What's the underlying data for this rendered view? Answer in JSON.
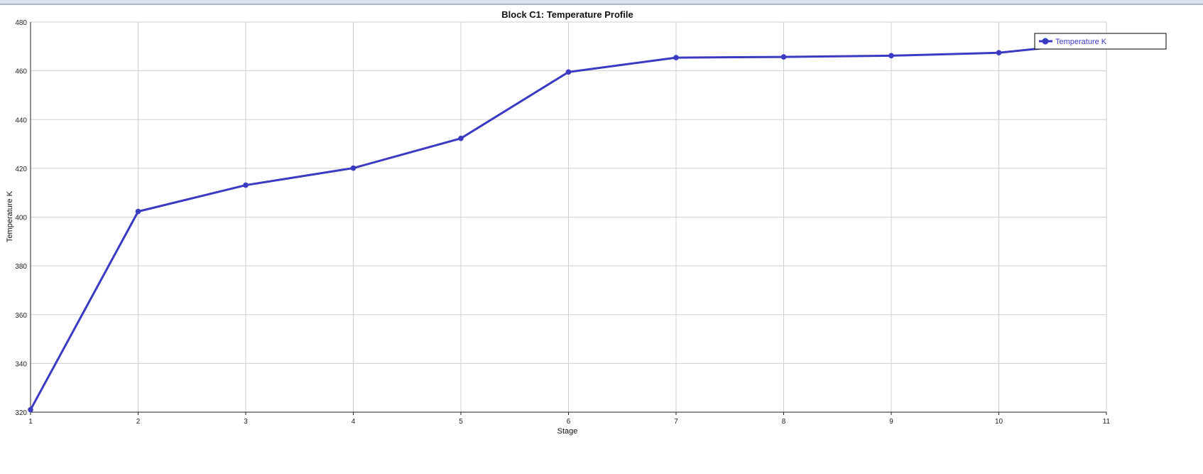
{
  "colors": {
    "series": "#3a3ac2",
    "grid": "#cfcfcf",
    "axis": "#222222"
  },
  "chart_data": {
    "type": "line",
    "title": "Block C1: Temperature Profile",
    "xlabel": "Stage",
    "ylabel": "Temperature K",
    "xlim": [
      1,
      11
    ],
    "ylim": [
      320,
      480
    ],
    "x_ticks": [
      1,
      2,
      3,
      4,
      5,
      6,
      7,
      8,
      9,
      10,
      11
    ],
    "y_ticks": [
      320,
      340,
      360,
      380,
      400,
      420,
      440,
      460,
      480
    ],
    "grid": true,
    "legend_position": "top-right",
    "series": [
      {
        "name": "Temperature K",
        "x": [
          1,
          2,
          3,
          4,
          5,
          6,
          7,
          8,
          9,
          10,
          11
        ],
        "values": [
          321,
          402.3,
          413.1,
          420.1,
          432.3,
          459.5,
          465.4,
          465.7,
          466.2,
          467.4,
          472
        ]
      }
    ]
  }
}
